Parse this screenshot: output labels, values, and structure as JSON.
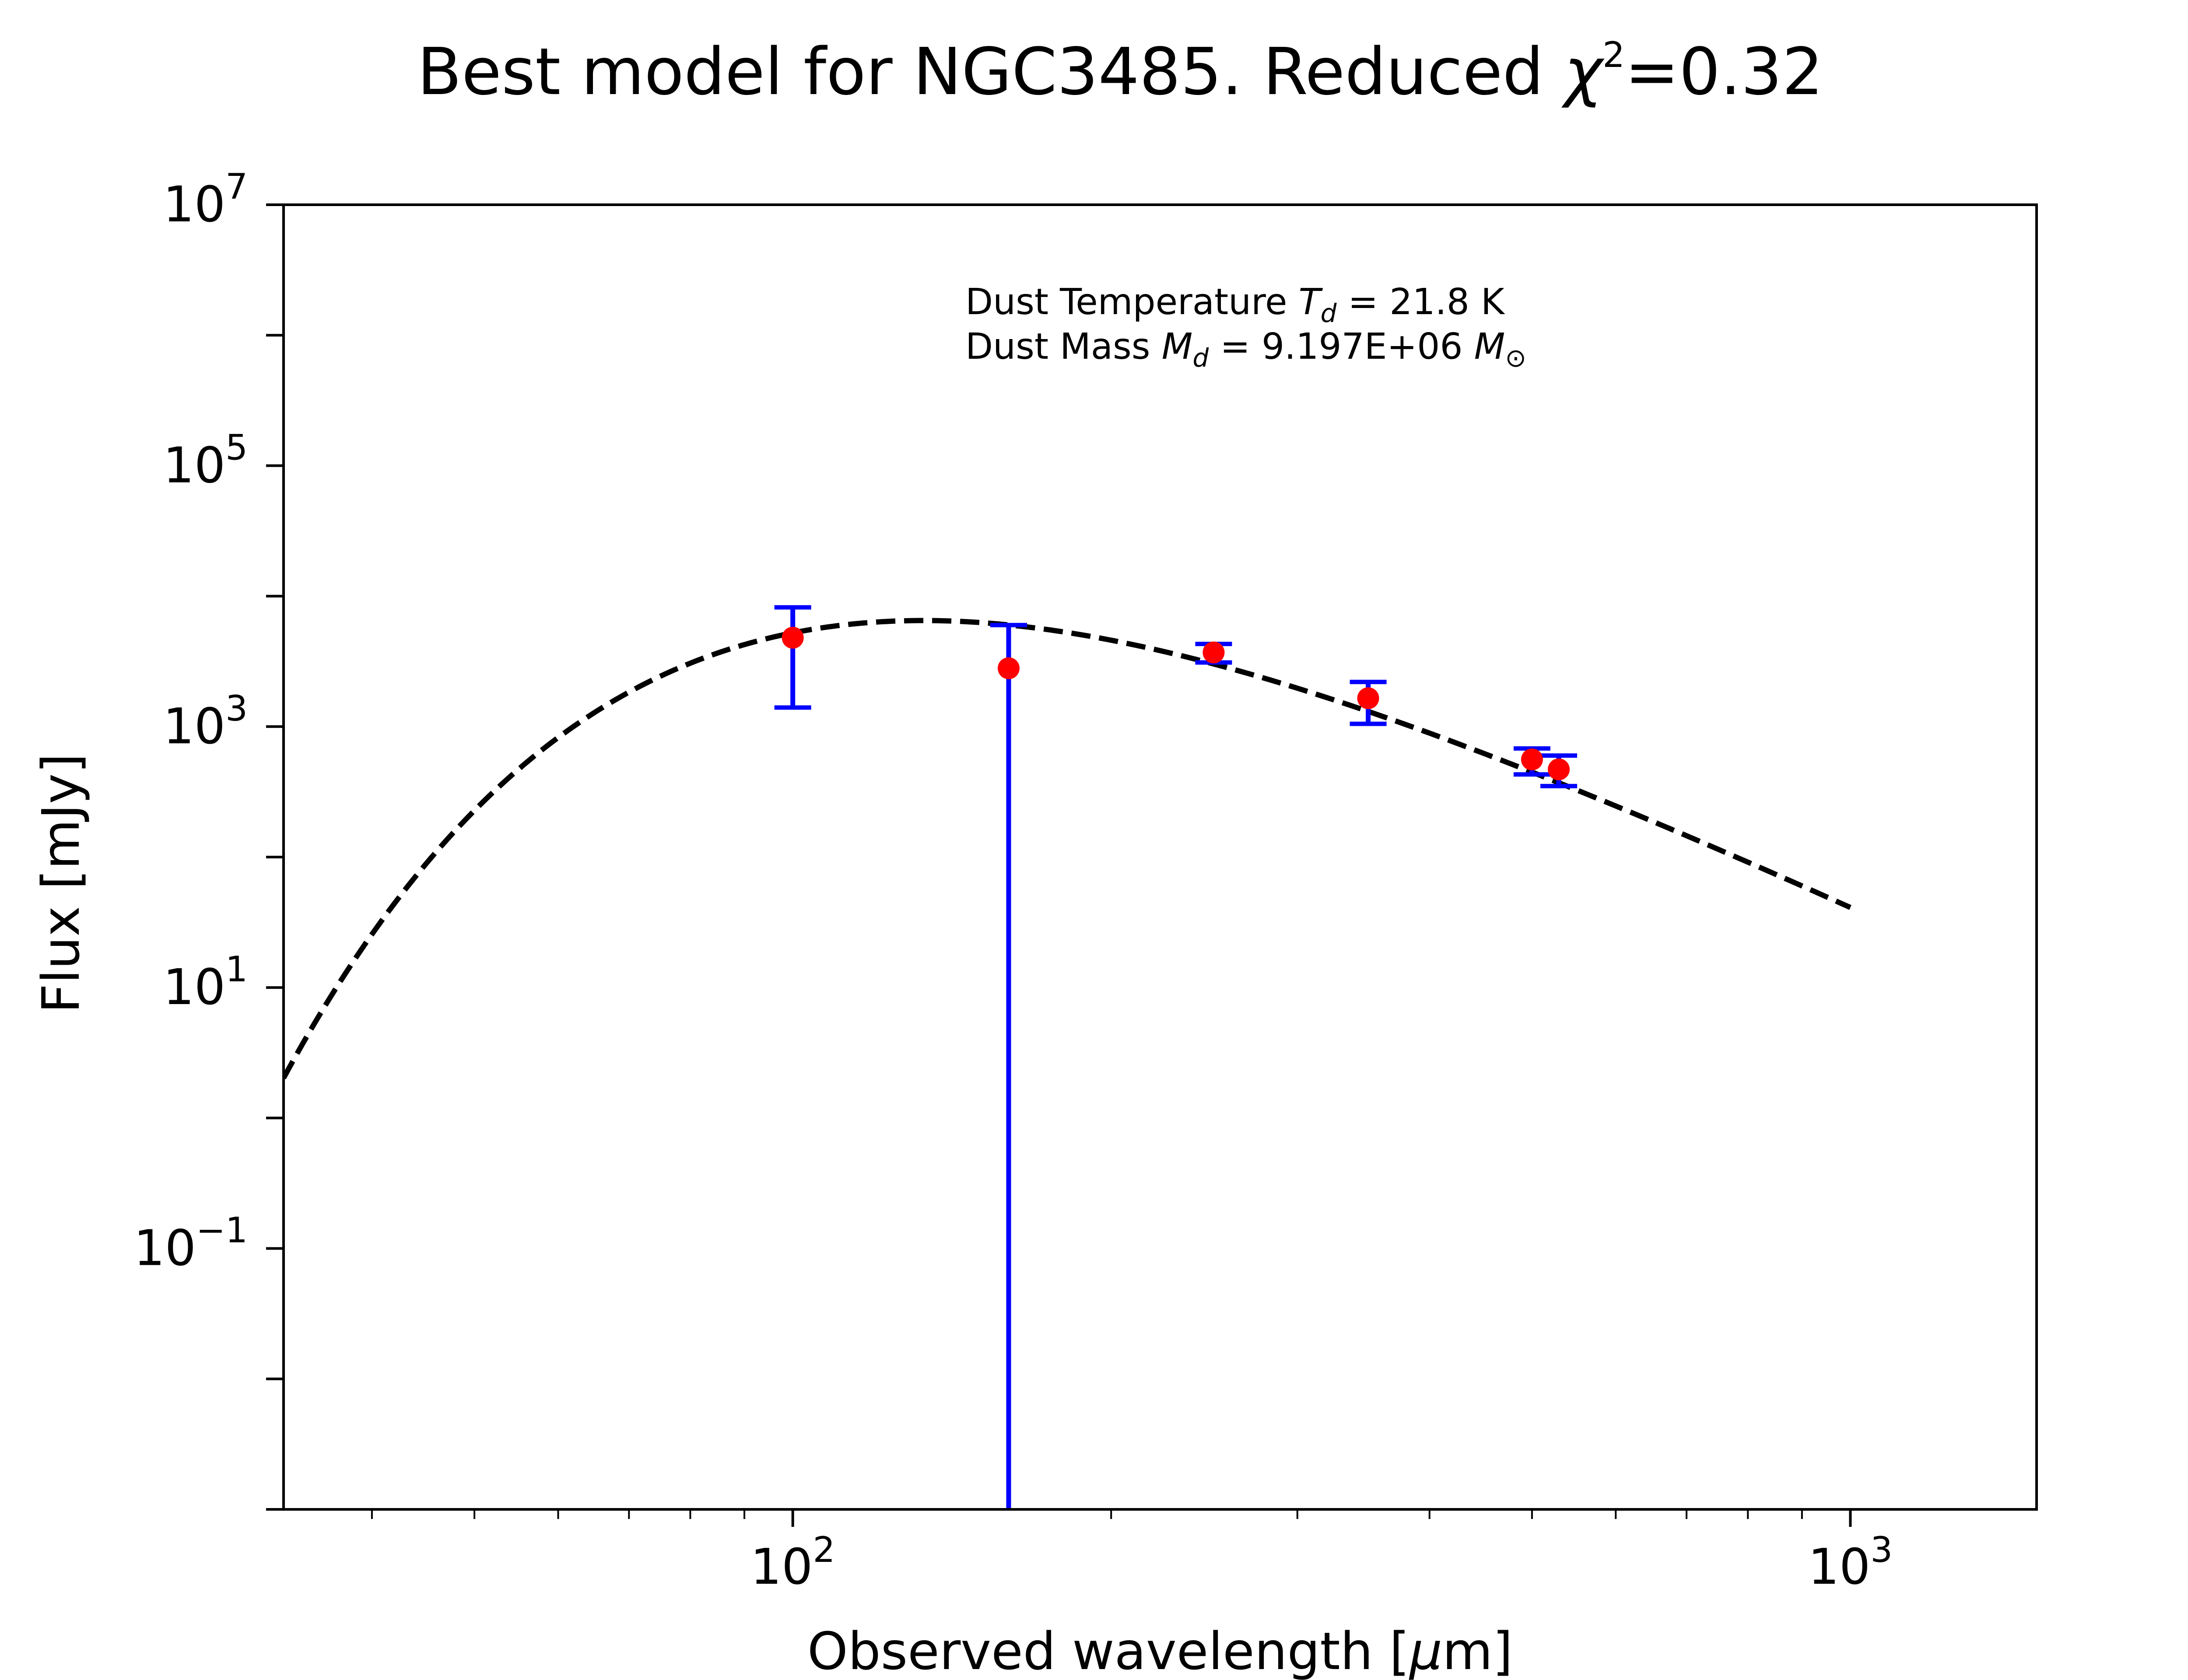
{
  "chart_data": {
    "type": "scatter",
    "title_prefix": "Best model for NGC3485. Reduced ",
    "title_symbol": "χ",
    "title_sup": "2",
    "title_suffix": "=0.32",
    "xlabel_prefix": "Observed wavelength [",
    "xlabel_mu": "μ",
    "xlabel_suffix": "m]",
    "ylabel": "Flux [mJy]",
    "xscale": "log",
    "yscale": "log",
    "xlim": [
      33,
      1500
    ],
    "ylim": [
      0.001,
      10000000
    ],
    "x_ticks": [
      {
        "value": 100,
        "base": "10",
        "exp": "2"
      },
      {
        "value": 1000,
        "base": "10",
        "exp": "3"
      }
    ],
    "y_ticks": [
      {
        "value": 0.1,
        "base": "10",
        "exp": "−1"
      },
      {
        "value": 10,
        "base": "10",
        "exp": "1"
      },
      {
        "value": 1000,
        "base": "10",
        "exp": "3"
      },
      {
        "value": 100000,
        "base": "10",
        "exp": "5"
      },
      {
        "value": 10000000,
        "base": "10",
        "exp": "7"
      }
    ],
    "annotations": {
      "temperature": {
        "prefix": "Dust Temperature ",
        "symbol": "T",
        "sub": "d",
        "suffix": " = 21.8 K"
      },
      "mass": {
        "prefix": "Dust Mass ",
        "symbol": "M",
        "sub": "d",
        "middle": " = 9.197E+06 ",
        "unit": "M",
        "unit_sub": "⊙"
      }
    },
    "model": {
      "style": "dashed",
      "color": "#000000",
      "temperature_K": 21.8,
      "beta": 2,
      "peak_flux_mJy": 6500,
      "x_range": [
        33,
        1000
      ]
    },
    "series": [
      {
        "type": "errorbar",
        "color": "#ff0000",
        "error_color": "#0000ff",
        "points": [
          {
            "x": 100,
            "y": 4800,
            "err_low": 1400,
            "err_high": 8200
          },
          {
            "x": 160,
            "y": 2800,
            "err_low": 0.001,
            "err_high": 6000
          },
          {
            "x": 250,
            "y": 3700,
            "err_low": 3100,
            "err_high": 4300
          },
          {
            "x": 350,
            "y": 1650,
            "err_low": 1050,
            "err_high": 2200
          },
          {
            "x": 500,
            "y": 560,
            "err_low": 430,
            "err_high": 680
          },
          {
            "x": 530,
            "y": 470,
            "err_low": 350,
            "err_high": 600
          }
        ]
      }
    ]
  }
}
